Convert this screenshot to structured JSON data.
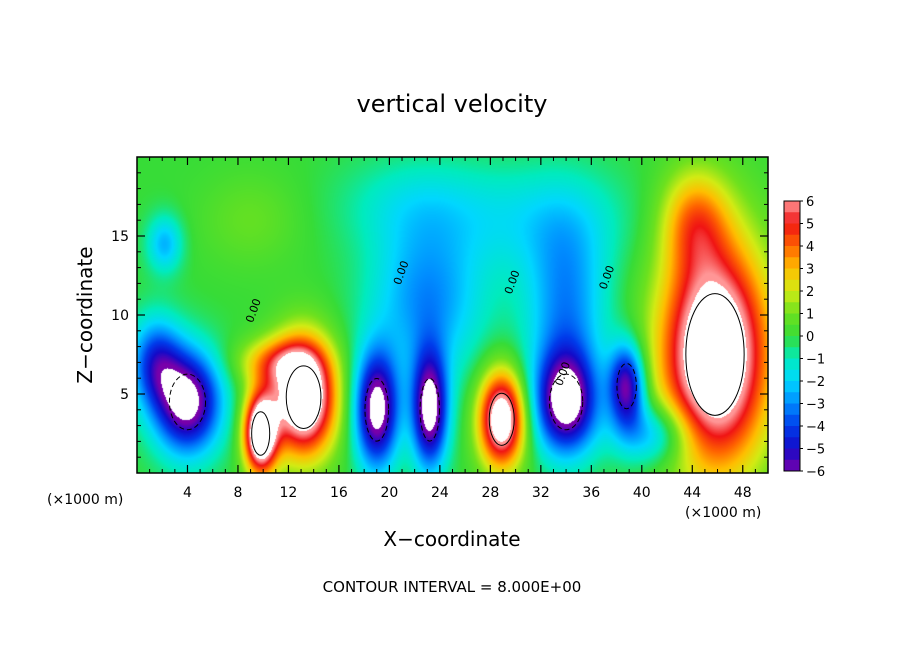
{
  "chart_data": {
    "type": "heatmap",
    "title": "vertical velocity",
    "xlabel": "X−coordinate",
    "ylabel": "Z−coordinate",
    "x_unit": "(×1000 m)",
    "y_unit": "(×1000 m)",
    "footer": "CONTOUR INTERVAL = 8.000E+00",
    "xlim": [
      0,
      50
    ],
    "ylim": [
      0,
      20
    ],
    "x_ticks": [
      4,
      8,
      12,
      16,
      20,
      24,
      28,
      32,
      36,
      40,
      44,
      48
    ],
    "y_ticks": [
      5,
      10,
      15
    ],
    "colorbar": {
      "min": -6,
      "max": 6,
      "ticks": [
        "6",
        "5",
        "4",
        "3",
        "2",
        "1",
        "0",
        "−1",
        "−2",
        "−3",
        "−4",
        "−5",
        "−6"
      ]
    },
    "contour_labels": [
      "0.00",
      "0.00",
      "0.00",
      "0.00",
      "0.00"
    ],
    "features": [
      {
        "x": 4.0,
        "z": 4.5,
        "rx": 2.6,
        "rz": 3.2,
        "w": -7
      },
      {
        "x": 9.8,
        "z": 2.5,
        "rx": 1.3,
        "rz": 2.5,
        "w": 9
      },
      {
        "x": 13.2,
        "z": 4.8,
        "rx": 2.5,
        "rz": 3.6,
        "w": 9
      },
      {
        "x": 19.0,
        "z": 4.0,
        "rx": 1.7,
        "rz": 3.6,
        "w": -7
      },
      {
        "x": 23.2,
        "z": 4.0,
        "rx": 1.4,
        "rz": 3.6,
        "w": -7
      },
      {
        "x": 28.9,
        "z": 3.4,
        "rx": 1.8,
        "rz": 3.0,
        "w": 8
      },
      {
        "x": 34.0,
        "z": 4.5,
        "rx": 2.4,
        "rz": 3.2,
        "w": -7
      },
      {
        "x": 38.8,
        "z": 5.5,
        "rx": 1.4,
        "rz": 2.6,
        "w": -6
      },
      {
        "x": 45.8,
        "z": 7.5,
        "rx": 4.2,
        "rz": 7.0,
        "w": 9
      },
      {
        "x": 44.2,
        "z": 16.0,
        "rx": 2.6,
        "rz": 3.2,
        "w": 3
      },
      {
        "x": 23.0,
        "z": 11.0,
        "rx": 4.5,
        "rz": 5.0,
        "w": -3
      },
      {
        "x": 34.0,
        "z": 10.5,
        "rx": 3.2,
        "rz": 5.5,
        "w": -3
      },
      {
        "x": 22.0,
        "z": 17.0,
        "rx": 6.0,
        "rz": 3.0,
        "w": -1.2
      },
      {
        "x": 32.0,
        "z": 16.0,
        "rx": 7.0,
        "rz": 3.5,
        "w": -1.5
      },
      {
        "x": 1.5,
        "z": 7.0,
        "rx": 2.0,
        "rz": 2.8,
        "w": -4
      },
      {
        "x": 2.2,
        "z": 14.5,
        "rx": 1.4,
        "rz": 1.8,
        "w": -2.5
      },
      {
        "x": 41.0,
        "z": 2.5,
        "rx": 3.0,
        "rz": 2.0,
        "w": -3
      },
      {
        "x": 9.0,
        "z": 16.0,
        "rx": 4.0,
        "rz": 3.0,
        "w": 0.8
      },
      {
        "x": 11.0,
        "z": 7.0,
        "rx": 3.0,
        "rz": 1.5,
        "w": 3
      }
    ]
  }
}
